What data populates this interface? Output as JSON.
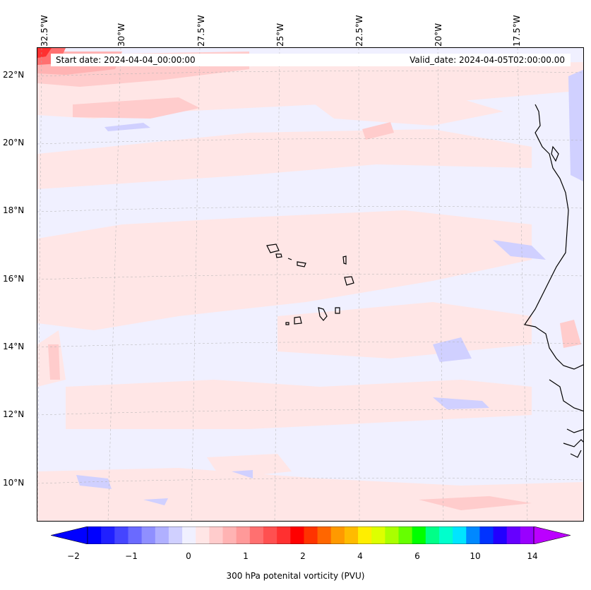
{
  "map": {
    "longitude_labels": [
      "32.5°W",
      "30°W",
      "27.5°W",
      "25°W",
      "22.5°W",
      "20°W",
      "17.5°W"
    ],
    "latitude_labels": [
      "22°N",
      "20°N",
      "18°N",
      "16°N",
      "14°N",
      "12°N",
      "10°N"
    ],
    "start_date": "Start date: 2024-04-04_00:00:00",
    "valid_date": "Valid_date: 2024-04-05T02:00:00.00",
    "background_color": "#f0f0ff",
    "coastline_color": "#000000"
  },
  "colorbar": {
    "label": "300 hPa potenital vorticity (PVU)",
    "tick_labels": [
      "−2",
      "−1",
      "0",
      "1",
      "2",
      "4",
      "6",
      "10",
      "14"
    ],
    "colors": [
      "#0000ff",
      "#2020ff",
      "#4545ff",
      "#6a6aff",
      "#8f8fff",
      "#b0b0ff",
      "#d0d0ff",
      "#f0f0ff",
      "#ffe6e6",
      "#ffcccc",
      "#ffb3b3",
      "#ff9999",
      "#ff7070",
      "#ff5050",
      "#ff3030",
      "#ff0000",
      "#ff3300",
      "#ff6600",
      "#ff9900",
      "#ffbb00",
      "#ffee00",
      "#ddff00",
      "#aaff00",
      "#66ff00",
      "#00ff00",
      "#00ff88",
      "#00ffcc",
      "#00e5ff",
      "#0088ff",
      "#0033ff",
      "#2200ff",
      "#6600ff",
      "#9900ff"
    ],
    "under_color": "#0000ff",
    "over_color": "#bb00ff"
  }
}
